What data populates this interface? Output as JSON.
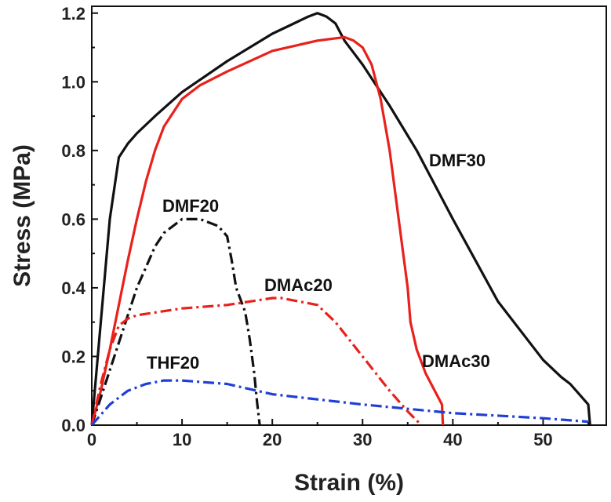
{
  "chart_data": {
    "type": "line",
    "title": "",
    "xlabel": "Strain (%)",
    "ylabel": "Stress (MPa)",
    "xlim": [
      0,
      57
    ],
    "ylim": [
      0,
      1.22
    ],
    "xticks": [
      0,
      10,
      20,
      30,
      40,
      50
    ],
    "xtick_labels": [
      "0",
      "10",
      "20",
      "30",
      "40",
      "50"
    ],
    "yticks": [
      0.0,
      0.2,
      0.4,
      0.6,
      0.8,
      1.0,
      1.2
    ],
    "ytick_labels": [
      "0.0",
      "0.2",
      "0.4",
      "0.6",
      "0.8",
      "1.0",
      "1.2"
    ],
    "grid": false,
    "series": [
      {
        "name": "DMF30",
        "label": "DMF30",
        "color": "#111111",
        "style": "solid",
        "x": [
          0,
          1,
          2,
          3,
          4,
          5,
          7,
          10,
          15,
          20,
          24,
          25,
          26,
          27,
          28,
          30,
          33,
          36,
          40,
          45,
          50,
          52,
          53,
          54,
          55,
          55.2
        ],
        "y": [
          0,
          0.3,
          0.6,
          0.78,
          0.82,
          0.85,
          0.9,
          0.97,
          1.06,
          1.14,
          1.19,
          1.2,
          1.19,
          1.17,
          1.12,
          1.05,
          0.93,
          0.8,
          0.6,
          0.36,
          0.19,
          0.14,
          0.12,
          0.09,
          0.06,
          0.0
        ]
      },
      {
        "name": "DMAc30",
        "label": "DMAc30",
        "color": "#e8211c",
        "style": "solid",
        "x": [
          0,
          1,
          2,
          3,
          4,
          5,
          6,
          7,
          8,
          10,
          12,
          15,
          20,
          25,
          28,
          29,
          30,
          31,
          32,
          33,
          34,
          35,
          35.3,
          36,
          37,
          38,
          38.8,
          38.9
        ],
        "y": [
          0,
          0.1,
          0.22,
          0.35,
          0.48,
          0.6,
          0.71,
          0.8,
          0.87,
          0.95,
          0.99,
          1.03,
          1.09,
          1.12,
          1.13,
          1.12,
          1.1,
          1.05,
          0.95,
          0.8,
          0.6,
          0.4,
          0.3,
          0.22,
          0.15,
          0.1,
          0.06,
          0.0
        ]
      },
      {
        "name": "DMF20",
        "label": "DMF20",
        "color": "#111111",
        "style": "dash-dot",
        "x": [
          0,
          1,
          2,
          3,
          4,
          5,
          6,
          7,
          8,
          9,
          10,
          11,
          12,
          13,
          14,
          15,
          15.5,
          16,
          17,
          17.5,
          18,
          18.3,
          18.6
        ],
        "y": [
          0,
          0.08,
          0.16,
          0.24,
          0.32,
          0.4,
          0.46,
          0.52,
          0.56,
          0.58,
          0.6,
          0.6,
          0.6,
          0.59,
          0.58,
          0.55,
          0.48,
          0.4,
          0.33,
          0.25,
          0.15,
          0.07,
          0.0
        ]
      },
      {
        "name": "DMAc20",
        "label": "DMAc20",
        "color": "#e8211c",
        "style": "dash-dot",
        "x": [
          0,
          1,
          2,
          3,
          4,
          5,
          10,
          15,
          20,
          21,
          23,
          25,
          27,
          30,
          33,
          35,
          36.5
        ],
        "y": [
          0,
          0.12,
          0.22,
          0.29,
          0.31,
          0.32,
          0.34,
          0.35,
          0.37,
          0.37,
          0.36,
          0.35,
          0.3,
          0.2,
          0.1,
          0.04,
          0.0
        ]
      },
      {
        "name": "THF20",
        "label": "THF20",
        "color": "#1f3fd6",
        "style": "dash-dot",
        "x": [
          0,
          2,
          4,
          6,
          8,
          10,
          15,
          20,
          30,
          40,
          50,
          55
        ],
        "y": [
          0,
          0.06,
          0.1,
          0.12,
          0.13,
          0.13,
          0.12,
          0.09,
          0.06,
          0.035,
          0.02,
          0.01
        ]
      }
    ]
  }
}
